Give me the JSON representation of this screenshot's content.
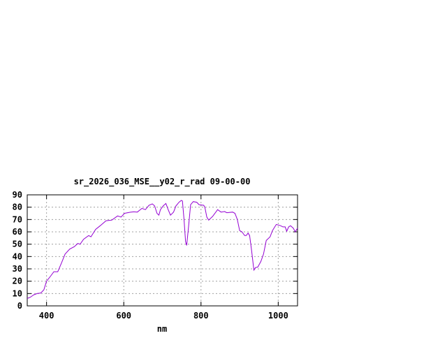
{
  "chart_data": {
    "type": "line",
    "title": "sr_2026_036_MSE__y02_r_rad 09-00-00",
    "xlabel": "nm",
    "ylabel": "",
    "xlim": [
      350,
      1050
    ],
    "ylim": [
      0,
      90
    ],
    "xticks": [
      400,
      600,
      800,
      1000
    ],
    "yticks": [
      0,
      10,
      20,
      30,
      40,
      50,
      60,
      70,
      80,
      90
    ],
    "grid": true,
    "line_color": "#9400d3",
    "series": [
      {
        "x": [
          350,
          358,
          367,
          376,
          385,
          393,
          400,
          409,
          419,
          429,
          439,
          448,
          460,
          472,
          481,
          487,
          496,
          509,
          515,
          527,
          539,
          554,
          569,
          584,
          593,
          602,
          617,
          626,
          635,
          647,
          656,
          665,
          674,
          680,
          686,
          691,
          695,
          702,
          709,
          715,
          721,
          729,
          735,
          743,
          749,
          752,
          756,
          760,
          763,
          768,
          773,
          780,
          789,
          795,
          807,
          810,
          815,
          820,
          830,
          843,
          852,
          861,
          867,
          882,
          888,
          894,
          900,
          906,
          913,
          917,
          922,
          926,
          931,
          937,
          941,
          947,
          955,
          962,
          969,
          979,
          985,
          991,
          995,
          1006,
          1012,
          1018,
          1022,
          1027,
          1032,
          1039,
          1044,
          1050
        ],
        "y": [
          6,
          7,
          9,
          10,
          10.4,
          13,
          20,
          23.5,
          27.7,
          27.7,
          35,
          42,
          46,
          48,
          50.6,
          50,
          54,
          57,
          56,
          62,
          65,
          69,
          69.5,
          72.9,
          72,
          75,
          75.9,
          76.3,
          76,
          79,
          78,
          81.5,
          82.7,
          81,
          75,
          73.5,
          78,
          81,
          83,
          78,
          73.5,
          76,
          81,
          84,
          85.5,
          85,
          70,
          52,
          49,
          65,
          82,
          84.5,
          84,
          82,
          81.5,
          80,
          72,
          69.5,
          72.5,
          78,
          76,
          76.5,
          75.5,
          76,
          75,
          70,
          61,
          60,
          57,
          57,
          59,
          57,
          45,
          29,
          31,
          31.5,
          36,
          42,
          53,
          56,
          61,
          64,
          66,
          65,
          64,
          64,
          60.5,
          64,
          65,
          63,
          60,
          63
        ]
      }
    ]
  }
}
